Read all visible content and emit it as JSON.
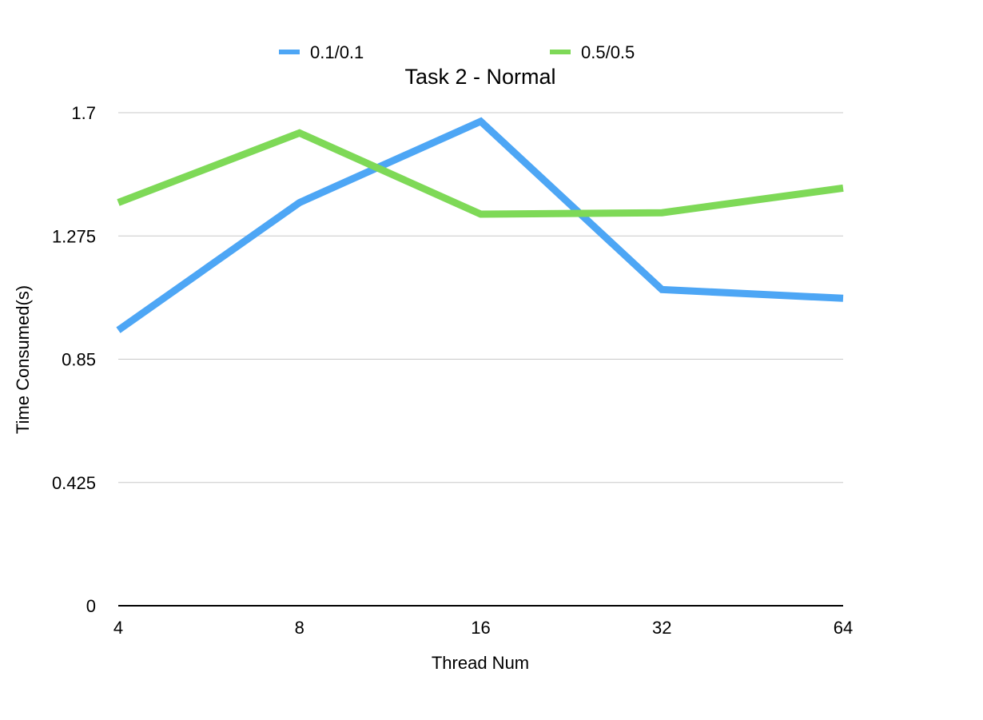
{
  "chart_data": {
    "type": "line",
    "title": "Task 2 - Normal",
    "xlabel": "Thread Num",
    "ylabel": "Time Consumed(s)",
    "categories": [
      "4",
      "8",
      "16",
      "32",
      "64"
    ],
    "y_ticks": [
      "0",
      "0.425",
      "0.85",
      "1.275",
      "1.7"
    ],
    "ylim": [
      0,
      1.7
    ],
    "grid": true,
    "legend_position": "top",
    "series": [
      {
        "name": "0.1/0.1",
        "color": "#4da6f5",
        "values": [
          0.95,
          1.39,
          1.67,
          1.09,
          1.06
        ]
      },
      {
        "name": "0.5/0.5",
        "color": "#7ed957",
        "values": [
          1.39,
          1.63,
          1.35,
          1.355,
          1.44
        ]
      }
    ]
  }
}
